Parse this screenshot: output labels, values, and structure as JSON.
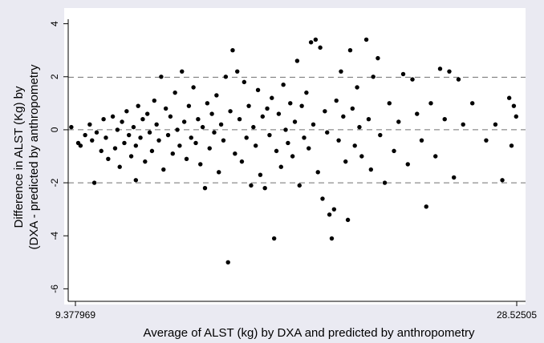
{
  "chart_data": {
    "type": "scatter",
    "title": "",
    "xlabel": "Average of ALST (kg) by DXA and predicted by anthropometry",
    "ylabel": [
      "Difference in ALST (Kg) by",
      "(DXA - predicted by anthropometry"
    ],
    "xlim": [
      9.377969,
      28.52505
    ],
    "ylim": [
      -6.2,
      4.2
    ],
    "x_ticks": [
      {
        "value": 9.377969,
        "label": "9.377969"
      },
      {
        "value": 28.52505,
        "label": "28.52505"
      }
    ],
    "y_ticks": [
      {
        "value": 4,
        "label": "4"
      },
      {
        "value": 2,
        "label": "2"
      },
      {
        "value": 0,
        "label": "0"
      },
      {
        "value": -2,
        "label": "-2"
      },
      {
        "value": -4,
        "label": "-4"
      },
      {
        "value": -6,
        "label": "-6"
      }
    ],
    "reference_lines": [
      1.98,
      0,
      -2.0
    ],
    "grid": false,
    "legend": "none",
    "marker_color": "#000000",
    "panel_color": "#ffffff",
    "background_color": "#eaeaf2",
    "points": [
      [
        9.2,
        0.1
      ],
      [
        9.5,
        -0.5
      ],
      [
        9.6,
        -0.6
      ],
      [
        9.8,
        -0.2
      ],
      [
        10.0,
        0.2
      ],
      [
        10.1,
        -0.4
      ],
      [
        10.2,
        -2.0
      ],
      [
        10.3,
        -0.1
      ],
      [
        10.5,
        -0.8
      ],
      [
        10.6,
        0.4
      ],
      [
        10.7,
        -0.3
      ],
      [
        10.8,
        -1.1
      ],
      [
        11.0,
        0.5
      ],
      [
        11.1,
        -0.7
      ],
      [
        11.2,
        0.0
      ],
      [
        11.3,
        -1.4
      ],
      [
        11.4,
        0.3
      ],
      [
        11.5,
        -0.5
      ],
      [
        11.6,
        0.7
      ],
      [
        11.7,
        -0.2
      ],
      [
        11.8,
        -1.0
      ],
      [
        11.9,
        0.1
      ],
      [
        12.0,
        -0.6
      ],
      [
        12.0,
        -1.9
      ],
      [
        12.1,
        0.9
      ],
      [
        12.2,
        -0.3
      ],
      [
        12.3,
        0.4
      ],
      [
        12.4,
        -1.2
      ],
      [
        12.5,
        0.6
      ],
      [
        12.6,
        -0.1
      ],
      [
        12.7,
        -0.8
      ],
      [
        12.8,
        1.1
      ],
      [
        12.9,
        0.2
      ],
      [
        13.0,
        -0.4
      ],
      [
        13.1,
        2.0
      ],
      [
        13.2,
        -1.5
      ],
      [
        13.3,
        0.8
      ],
      [
        13.4,
        -0.2
      ],
      [
        13.5,
        0.5
      ],
      [
        13.6,
        -0.9
      ],
      [
        13.7,
        1.4
      ],
      [
        13.8,
        0.0
      ],
      [
        13.9,
        -0.6
      ],
      [
        14.0,
        2.2
      ],
      [
        14.1,
        0.3
      ],
      [
        14.2,
        -1.1
      ],
      [
        14.3,
        0.9
      ],
      [
        14.4,
        -0.3
      ],
      [
        14.5,
        1.6
      ],
      [
        14.6,
        -0.5
      ],
      [
        14.7,
        0.4
      ],
      [
        14.8,
        -1.3
      ],
      [
        14.9,
        0.1
      ],
      [
        15.0,
        -2.2
      ],
      [
        15.1,
        1.0
      ],
      [
        15.2,
        -0.7
      ],
      [
        15.3,
        0.6
      ],
      [
        15.4,
        -0.1
      ],
      [
        15.5,
        1.3
      ],
      [
        15.6,
        -1.6
      ],
      [
        15.7,
        0.2
      ],
      [
        15.8,
        -0.4
      ],
      [
        15.9,
        2.0
      ],
      [
        16.0,
        -5.0
      ],
      [
        16.1,
        0.7
      ],
      [
        16.2,
        3.0
      ],
      [
        16.3,
        -0.9
      ],
      [
        16.4,
        2.2
      ],
      [
        16.5,
        0.4
      ],
      [
        16.6,
        -1.2
      ],
      [
        16.7,
        1.8
      ],
      [
        16.8,
        -0.3
      ],
      [
        16.9,
        0.9
      ],
      [
        17.0,
        -2.1
      ],
      [
        17.1,
        0.1
      ],
      [
        17.2,
        -0.6
      ],
      [
        17.3,
        1.5
      ],
      [
        17.4,
        -1.7
      ],
      [
        17.5,
        0.5
      ],
      [
        17.6,
        -2.2
      ],
      [
        17.7,
        0.8
      ],
      [
        17.8,
        -0.2
      ],
      [
        17.9,
        1.2
      ],
      [
        18.0,
        -4.1
      ],
      [
        18.1,
        -0.8
      ],
      [
        18.2,
        0.6
      ],
      [
        18.3,
        -1.4
      ],
      [
        18.4,
        1.7
      ],
      [
        18.5,
        0.0
      ],
      [
        18.6,
        -0.5
      ],
      [
        18.7,
        1.0
      ],
      [
        18.8,
        -1.0
      ],
      [
        18.9,
        0.3
      ],
      [
        19.0,
        2.6
      ],
      [
        19.1,
        -2.1
      ],
      [
        19.2,
        0.9
      ],
      [
        19.3,
        -0.3
      ],
      [
        19.4,
        1.4
      ],
      [
        19.5,
        -0.7
      ],
      [
        19.6,
        3.3
      ],
      [
        19.7,
        0.2
      ],
      [
        19.8,
        3.4
      ],
      [
        19.9,
        -1.6
      ],
      [
        20.0,
        3.1
      ],
      [
        20.1,
        -2.6
      ],
      [
        20.2,
        0.7
      ],
      [
        20.3,
        -0.1
      ],
      [
        20.4,
        -3.2
      ],
      [
        20.5,
        -4.1
      ],
      [
        20.6,
        -3.0
      ],
      [
        20.7,
        1.1
      ],
      [
        20.8,
        -0.4
      ],
      [
        20.9,
        2.2
      ],
      [
        21.0,
        0.5
      ],
      [
        21.1,
        -1.2
      ],
      [
        21.2,
        -3.4
      ],
      [
        21.3,
        3.0
      ],
      [
        21.4,
        0.8
      ],
      [
        21.5,
        -0.6
      ],
      [
        21.6,
        1.6
      ],
      [
        21.7,
        0.1
      ],
      [
        21.8,
        -1.0
      ],
      [
        22.0,
        3.4
      ],
      [
        22.1,
        0.4
      ],
      [
        22.2,
        -1.5
      ],
      [
        22.3,
        2.0
      ],
      [
        22.5,
        2.7
      ],
      [
        22.6,
        -0.2
      ],
      [
        22.8,
        -2.0
      ],
      [
        23.0,
        1.0
      ],
      [
        23.2,
        -0.8
      ],
      [
        23.4,
        0.3
      ],
      [
        23.6,
        2.1
      ],
      [
        23.8,
        -1.3
      ],
      [
        24.0,
        1.9
      ],
      [
        24.2,
        0.6
      ],
      [
        24.4,
        -0.4
      ],
      [
        24.6,
        -2.9
      ],
      [
        24.8,
        1.0
      ],
      [
        25.0,
        -1.0
      ],
      [
        25.2,
        2.3
      ],
      [
        25.4,
        0.4
      ],
      [
        25.6,
        2.2
      ],
      [
        25.8,
        -1.8
      ],
      [
        26.0,
        1.9
      ],
      [
        26.2,
        0.2
      ],
      [
        26.6,
        1.0
      ],
      [
        27.2,
        -0.4
      ],
      [
        27.6,
        0.2
      ],
      [
        27.9,
        -1.9
      ],
      [
        28.2,
        1.2
      ],
      [
        28.3,
        -0.6
      ],
      [
        28.4,
        0.9
      ],
      [
        28.5,
        0.5
      ]
    ]
  }
}
